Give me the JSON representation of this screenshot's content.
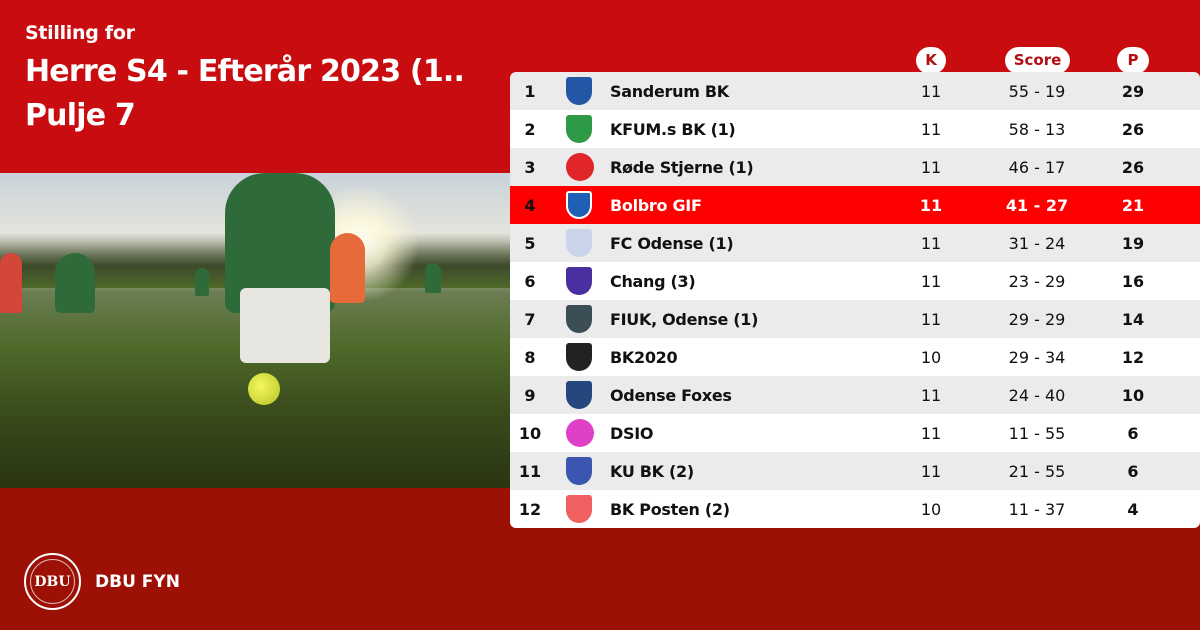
{
  "header": {
    "subtitle": "Stilling for",
    "title_line1": "Herre S4 - Efterår 2023 (1..",
    "title_line2": "Pulje 7"
  },
  "columns": {
    "k": "K",
    "score": "Score",
    "p": "P"
  },
  "highlight_color": "#fe0000",
  "rows": [
    {
      "rank": "1",
      "team": "Sanderum BK",
      "k": "11",
      "score": "55 - 19",
      "p": "29",
      "logo": "blue-shield",
      "color": "#2456a6"
    },
    {
      "rank": "2",
      "team": "KFUM.s BK (1)",
      "k": "11",
      "score": "58 - 13",
      "p": "26",
      "logo": "green-shield",
      "color": "#2e9a48"
    },
    {
      "rank": "3",
      "team": "Røde Stjerne (1)",
      "k": "11",
      "score": "46 - 17",
      "p": "26",
      "logo": "red-star",
      "color": "#e0262b"
    },
    {
      "rank": "4",
      "team": "Bolbro GIF",
      "k": "11",
      "score": "41 - 27",
      "p": "21",
      "logo": "blue-shield",
      "color": "#1f5fb5",
      "highlight": true
    },
    {
      "rank": "5",
      "team": "FC Odense (1)",
      "k": "11",
      "score": "31 - 24",
      "p": "19",
      "logo": "white-crest",
      "color": "#c9d3ea"
    },
    {
      "rank": "6",
      "team": "Chang (3)",
      "k": "11",
      "score": "23 - 29",
      "p": "16",
      "logo": "purple-shield",
      "color": "#4a2fa0"
    },
    {
      "rank": "7",
      "team": "FIUK, Odense (1)",
      "k": "11",
      "score": "29 - 29",
      "p": "14",
      "logo": "dark-crest",
      "color": "#3b4d55"
    },
    {
      "rank": "8",
      "team": "BK2020",
      "k": "10",
      "score": "29 - 34",
      "p": "12",
      "logo": "black-shield",
      "color": "#222222"
    },
    {
      "rank": "9",
      "team": "Odense Foxes",
      "k": "11",
      "score": "24 - 40",
      "p": "10",
      "logo": "fox-shield",
      "color": "#24487e"
    },
    {
      "rank": "10",
      "team": "DSIO",
      "k": "11",
      "score": "11 - 55",
      "p": "6",
      "logo": "pink-circle",
      "color": "#e040c8"
    },
    {
      "rank": "11",
      "team": "KU BK (2)",
      "k": "11",
      "score": "21 - 55",
      "p": "6",
      "logo": "yellow-shield",
      "color": "#3a56b0"
    },
    {
      "rank": "12",
      "team": "BK Posten (2)",
      "k": "10",
      "score": "11 - 37",
      "p": "4",
      "logo": "red-crest",
      "color": "#f06060"
    }
  ],
  "footer": {
    "seal_text": "DBU",
    "brand": "DBU FYN"
  }
}
